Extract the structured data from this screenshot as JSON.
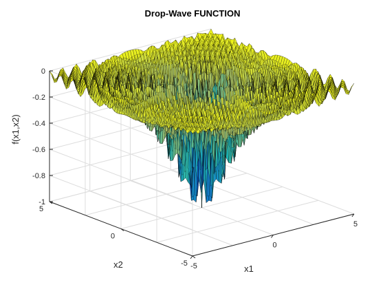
{
  "chart_data": {
    "type": "surface",
    "title": "Drop-Wave FUNCTION",
    "xlabel": "x1",
    "ylabel": "x2",
    "zlabel": "f(x1,x2)",
    "function": "f(x1,x2) = -(1 + cos(12*sqrt(x1^2+x2^2))) / (0.5*(x1^2+x2^2) + 2)",
    "xlim": [
      -5,
      5
    ],
    "ylim": [
      -5,
      5
    ],
    "zlim": [
      -1,
      0
    ],
    "x_ticks": [
      "-5",
      "0",
      "5"
    ],
    "y_ticks": [
      "-5",
      "0",
      "5"
    ],
    "z_ticks": [
      "-1",
      "-0.8",
      "-0.6",
      "-0.4",
      "-0.2",
      "0"
    ],
    "grid": true,
    "colormap": "parula",
    "colors": {
      "low": "#352a87",
      "mid_low": "#0f5cdd",
      "mid": "#1fb8b5",
      "mid_high": "#a5be6a",
      "high": "#f9fb0e",
      "grid": "#dcdcdc",
      "axis": "#262626",
      "edge": "#000000"
    }
  }
}
